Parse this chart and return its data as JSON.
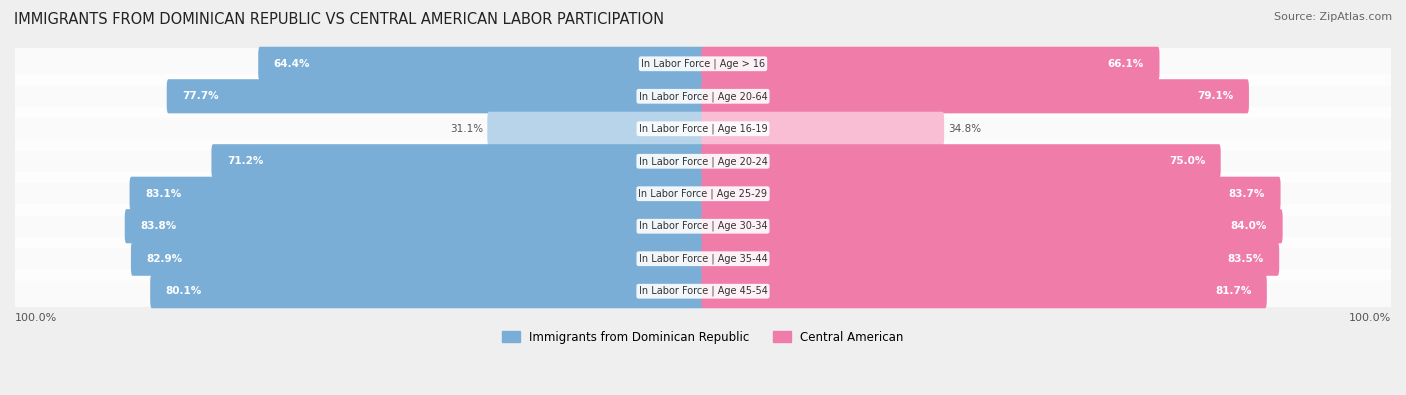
{
  "title": "IMMIGRANTS FROM DOMINICAN REPUBLIC VS CENTRAL AMERICAN LABOR PARTICIPATION",
  "source": "Source: ZipAtlas.com",
  "categories": [
    "In Labor Force | Age > 16",
    "In Labor Force | Age 20-64",
    "In Labor Force | Age 16-19",
    "In Labor Force | Age 20-24",
    "In Labor Force | Age 25-29",
    "In Labor Force | Age 30-34",
    "In Labor Force | Age 35-44",
    "In Labor Force | Age 45-54"
  ],
  "dominican": [
    64.4,
    77.7,
    31.1,
    71.2,
    83.1,
    83.8,
    82.9,
    80.1
  ],
  "central_american": [
    66.1,
    79.1,
    34.8,
    75.0,
    83.7,
    84.0,
    83.5,
    81.7
  ],
  "dominican_color": "#7aaed6",
  "central_american_color": "#f07caa",
  "dominican_light_color": "#b8d4ea",
  "central_american_light_color": "#f9bdd4",
  "background_color": "#efefef",
  "max_val": 100.0,
  "bar_height": 0.55,
  "legend_label_dr": "Immigrants from Dominican Republic",
  "legend_label_ca": "Central American"
}
